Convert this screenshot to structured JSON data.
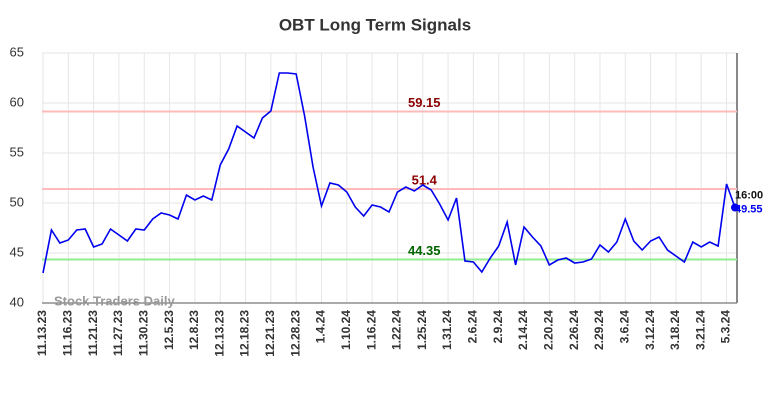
{
  "chart_data": {
    "type": "line",
    "title": "OBT Long Term Signals",
    "categories": [
      "11.13.23",
      null,
      null,
      "11.16.23",
      null,
      null,
      "11.21.23",
      null,
      null,
      "11.27.23",
      null,
      null,
      "11.30.23",
      null,
      null,
      "12.5.23",
      null,
      null,
      "12.8.23",
      null,
      null,
      "12.13.23",
      null,
      null,
      "12.18.23",
      null,
      null,
      "12.21.23",
      null,
      null,
      "12.28.23",
      null,
      null,
      "1.4.24",
      null,
      null,
      "1.10.24",
      null,
      null,
      "1.16.24",
      null,
      null,
      "1.22.24",
      null,
      null,
      "1.25.24",
      null,
      null,
      "1.31.24",
      null,
      null,
      "2.6.24",
      null,
      null,
      "2.9.24",
      null,
      null,
      "2.14.24",
      null,
      null,
      "2.20.24",
      null,
      null,
      "2.26.24",
      null,
      null,
      "2.29.24",
      null,
      null,
      "3.6.24",
      null,
      null,
      "3.12.24",
      null,
      null,
      "3.18.24",
      null,
      null,
      "3.21.24",
      null,
      null,
      "5.3.24",
      null
    ],
    "values": [
      43.0,
      47.3,
      46.0,
      46.3,
      47.3,
      47.4,
      45.6,
      45.9,
      47.4,
      46.8,
      46.2,
      47.4,
      47.3,
      48.4,
      49.0,
      48.8,
      48.4,
      50.8,
      50.3,
      50.7,
      50.3,
      53.8,
      55.4,
      57.7,
      57.1,
      56.5,
      58.5,
      59.2,
      63.0,
      63.0,
      62.9,
      58.7,
      53.6,
      49.7,
      52.0,
      51.8,
      51.1,
      49.6,
      48.7,
      49.8,
      49.6,
      49.1,
      51.1,
      51.6,
      51.2,
      51.8,
      51.3,
      49.9,
      48.3,
      50.5,
      44.2,
      44.1,
      43.1,
      44.5,
      45.7,
      48.1,
      43.8,
      47.6,
      46.6,
      45.7,
      43.8,
      44.3,
      44.5,
      44.0,
      44.1,
      44.4,
      45.8,
      45.1,
      46.1,
      48.4,
      46.2,
      45.3,
      46.2,
      46.6,
      45.3,
      44.7,
      44.1,
      46.1,
      45.6,
      46.1,
      45.7,
      51.9,
      49.55
    ],
    "color": "#0000ee",
    "ylim": [
      40,
      65
    ],
    "yticks": [
      40,
      45,
      50,
      55,
      60,
      65
    ],
    "grid": true,
    "hlines": [
      {
        "value": 59.15,
        "color": "#ffbbbb",
        "label_color": "#8b0000"
      },
      {
        "value": 51.4,
        "color": "#ffbbbb",
        "label_color": "#8b0000"
      },
      {
        "value": 44.35,
        "color": "#90ee90",
        "label_color": "#006400"
      }
    ],
    "last_time": "16:00",
    "watermark": "Stock Traders Daily"
  }
}
